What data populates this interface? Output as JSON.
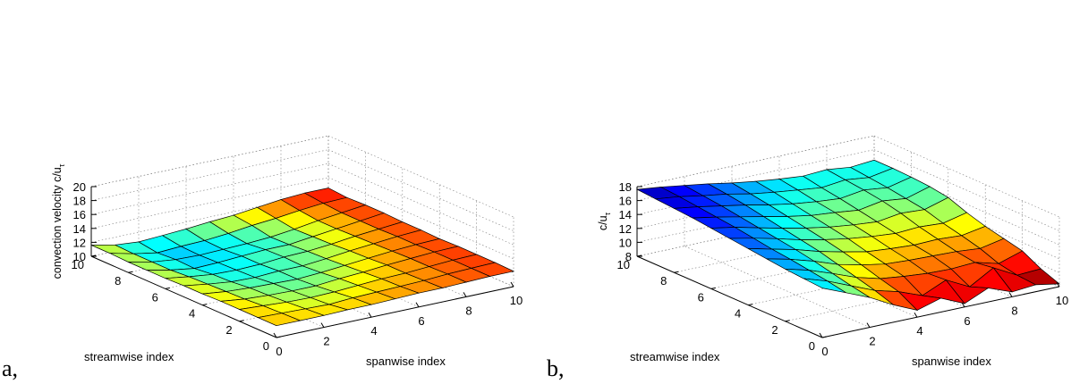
{
  "panels": [
    {
      "label": "a,"
    },
    {
      "label": "b,"
    }
  ],
  "chart_data": [
    {
      "type": "surface",
      "panel": "a",
      "ylabel": "convection velocity c/u",
      "ylabel_sub": "τ",
      "xlabel_left": "streamwise index",
      "xlabel_right": "spanwise index",
      "zlim": [
        10,
        20
      ],
      "z_reversed": false,
      "z_ticks": [
        "10",
        "12",
        "14",
        "16",
        "18",
        "20"
      ],
      "streamwise_ticks": [
        "0",
        "2",
        "4",
        "6",
        "8",
        "10"
      ],
      "spanwise_ticks": [
        "0",
        "2",
        "4",
        "6",
        "8",
        "10"
      ],
      "colormap": "jet",
      "color_range": [
        9,
        13
      ],
      "grid": true,
      "z": [
        [
          11.7,
          11.7,
          11.7,
          11.8,
          11.8,
          11.9,
          12.0,
          12.0,
          12.1,
          12.2,
          12.2
        ],
        [
          11.7,
          11.6,
          11.5,
          11.4,
          11.6,
          11.7,
          11.8,
          11.9,
          12.1,
          12.2,
          12.3
        ],
        [
          11.7,
          11.5,
          11.3,
          11.2,
          11.3,
          11.5,
          11.7,
          11.8,
          12.0,
          12.2,
          12.3
        ],
        [
          11.7,
          11.3,
          11.1,
          11.0,
          11.0,
          11.3,
          11.5,
          11.8,
          12.0,
          12.2,
          12.3
        ],
        [
          11.6,
          11.2,
          11.0,
          10.9,
          10.8,
          11.0,
          11.3,
          11.6,
          11.9,
          12.1,
          12.2
        ],
        [
          11.6,
          11.1,
          10.7,
          10.6,
          10.8,
          10.8,
          11.1,
          11.5,
          11.8,
          12.1,
          12.3
        ],
        [
          11.5,
          11.0,
          10.6,
          10.5,
          10.6,
          10.9,
          11.0,
          11.3,
          11.7,
          12.0,
          12.3
        ],
        [
          11.5,
          10.8,
          10.3,
          10.4,
          10.6,
          10.8,
          10.8,
          11.2,
          11.6,
          12.0,
          12.4
        ],
        [
          11.5,
          10.8,
          10.4,
          10.3,
          10.4,
          10.5,
          10.7,
          11.1,
          11.6,
          12.0,
          12.4
        ],
        [
          11.6,
          10.8,
          10.2,
          10.4,
          10.5,
          10.8,
          11.2,
          11.5,
          11.9,
          12.2,
          12.3
        ],
        [
          11.6,
          10.9,
          10.6,
          10.8,
          11.0,
          11.3,
          11.5,
          11.9,
          12.3,
          12.5,
          12.5
        ]
      ]
    },
    {
      "type": "surface",
      "panel": "b",
      "ylabel": "c/u",
      "ylabel_sub": "τ",
      "xlabel_left": "streamwise index",
      "xlabel_right": "spanwise index",
      "zlim": [
        8,
        18
      ],
      "z_reversed": true,
      "z_ticks": [
        "8",
        "10",
        "12",
        "14",
        "16",
        "18"
      ],
      "streamwise_ticks": [
        "0",
        "2",
        "4",
        "6",
        "8",
        "10"
      ],
      "spanwise_ticks": [
        "0",
        "2",
        "4",
        "6",
        "8",
        "10"
      ],
      "colormap": "jet",
      "color_range": [
        8,
        17.5
      ],
      "grid": true,
      "z": [
        [
          10.9,
          12.3,
          13.7,
          15.5,
          17.0,
          16.0,
          17.5,
          16.0,
          17.3,
          17.0,
          17.6
        ],
        [
          10.7,
          11.8,
          13.2,
          14.6,
          15.5,
          16.8,
          15.3,
          17.0,
          15.0,
          16.8,
          16.6
        ],
        [
          10.5,
          11.4,
          12.6,
          13.9,
          14.8,
          15.2,
          15.5,
          15.6,
          15.4,
          16.3,
          15.2
        ],
        [
          10.2,
          11.0,
          12.0,
          13.2,
          14.0,
          14.6,
          14.8,
          14.9,
          15.0,
          15.3,
          14.6
        ],
        [
          9.9,
          10.7,
          11.5,
          12.5,
          13.3,
          14.0,
          14.3,
          14.5,
          14.4,
          14.6,
          14.0
        ],
        [
          9.6,
          10.3,
          11.1,
          12.0,
          12.7,
          13.3,
          13.7,
          14.0,
          13.8,
          14.0,
          13.2
        ],
        [
          9.3,
          9.9,
          10.7,
          11.5,
          12.2,
          12.8,
          13.2,
          13.5,
          13.0,
          13.2,
          12.2
        ],
        [
          9.0,
          9.6,
          10.3,
          11.0,
          11.7,
          12.3,
          12.6,
          13.0,
          12.4,
          12.8,
          11.8
        ],
        [
          8.8,
          9.3,
          9.9,
          10.5,
          11.2,
          11.8,
          12.2,
          12.5,
          12.0,
          12.4,
          11.6
        ],
        [
          8.6,
          9.0,
          9.6,
          10.1,
          10.8,
          11.3,
          11.7,
          12.1,
          11.7,
          12.1,
          11.5
        ],
        [
          8.4,
          8.8,
          9.3,
          9.8,
          10.4,
          10.9,
          11.3,
          11.6,
          11.4,
          11.8,
          11.5
        ]
      ]
    }
  ]
}
